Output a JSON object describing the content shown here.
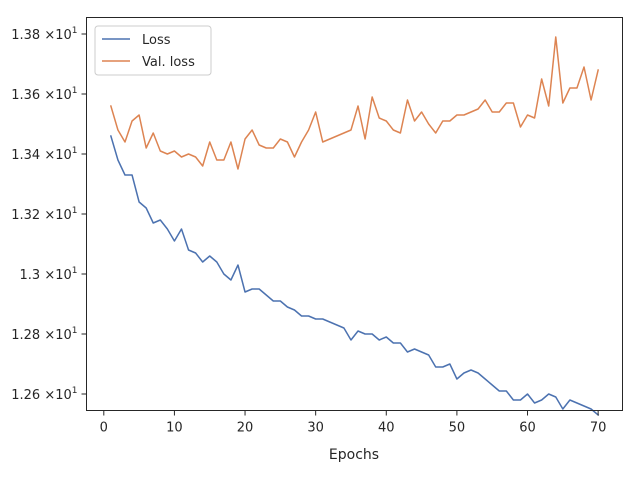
{
  "chart_data": {
    "type": "line",
    "title": "",
    "xlabel": "Epochs",
    "ylabel": "",
    "xlim": [
      -2.45,
      73.45
    ],
    "ylim": [
      12.545,
      13.855
    ],
    "x_ticks": [
      0,
      10,
      20,
      30,
      40,
      50,
      60,
      70
    ],
    "y_ticks": [
      {
        "value": 12.6,
        "mantissa": "1.26",
        "exp": "1"
      },
      {
        "value": 12.8,
        "mantissa": "1.28",
        "exp": "1"
      },
      {
        "value": 13.0,
        "mantissa": "1.3",
        "exp": "1"
      },
      {
        "value": 13.2,
        "mantissa": "1.32",
        "exp": "1"
      },
      {
        "value": 13.4,
        "mantissa": "1.34",
        "exp": "1"
      },
      {
        "value": 13.6,
        "mantissa": "1.36",
        "exp": "1"
      },
      {
        "value": 13.8,
        "mantissa": "1.38",
        "exp": "1"
      }
    ],
    "y_tick_times": "×10",
    "grid": false,
    "legend_position": "top-left",
    "series": [
      {
        "name": "Loss",
        "color": "#4c72b0",
        "x": [
          1,
          2,
          3,
          4,
          5,
          6,
          7,
          8,
          9,
          10,
          11,
          12,
          13,
          14,
          15,
          16,
          17,
          18,
          19,
          20,
          21,
          22,
          23,
          24,
          25,
          26,
          27,
          28,
          29,
          30,
          31,
          32,
          33,
          34,
          35,
          36,
          37,
          38,
          39,
          40,
          41,
          42,
          43,
          44,
          45,
          46,
          47,
          48,
          49,
          50,
          51,
          52,
          53,
          54,
          55,
          56,
          57,
          58,
          59,
          60,
          61,
          62,
          63,
          64,
          65,
          66,
          67,
          68,
          69,
          70
        ],
        "values": [
          13.46,
          13.38,
          13.33,
          13.33,
          13.24,
          13.22,
          13.17,
          13.18,
          13.15,
          13.11,
          13.15,
          13.08,
          13.07,
          13.04,
          13.06,
          13.04,
          13.0,
          12.98,
          13.03,
          12.94,
          12.95,
          12.95,
          12.93,
          12.91,
          12.91,
          12.89,
          12.88,
          12.86,
          12.86,
          12.85,
          12.85,
          12.84,
          12.83,
          12.82,
          12.78,
          12.81,
          12.8,
          12.8,
          12.78,
          12.79,
          12.77,
          12.77,
          12.74,
          12.75,
          12.74,
          12.73,
          12.69,
          12.69,
          12.7,
          12.65,
          12.67,
          12.68,
          12.67,
          12.65,
          12.63,
          12.61,
          12.61,
          12.58,
          12.58,
          12.6,
          12.57,
          12.58,
          12.6,
          12.59,
          12.55,
          12.58,
          12.57,
          12.56,
          12.55,
          12.53
        ]
      },
      {
        "name": "Val. loss",
        "color": "#dd8452",
        "x": [
          1,
          2,
          3,
          4,
          5,
          6,
          7,
          8,
          9,
          10,
          11,
          12,
          13,
          14,
          15,
          16,
          17,
          18,
          19,
          20,
          21,
          22,
          23,
          24,
          25,
          26,
          27,
          28,
          29,
          30,
          31,
          32,
          33,
          34,
          35,
          36,
          37,
          38,
          39,
          40,
          41,
          42,
          43,
          44,
          45,
          46,
          47,
          48,
          49,
          50,
          51,
          52,
          53,
          54,
          55,
          56,
          57,
          58,
          59,
          60,
          61,
          62,
          63,
          64,
          65,
          66,
          67,
          68,
          69,
          70
        ],
        "values": [
          13.56,
          13.48,
          13.44,
          13.51,
          13.53,
          13.42,
          13.47,
          13.41,
          13.4,
          13.41,
          13.39,
          13.4,
          13.39,
          13.36,
          13.44,
          13.38,
          13.38,
          13.44,
          13.35,
          13.45,
          13.48,
          13.43,
          13.42,
          13.42,
          13.45,
          13.44,
          13.39,
          13.44,
          13.48,
          13.54,
          13.44,
          13.45,
          13.46,
          13.47,
          13.48,
          13.56,
          13.45,
          13.59,
          13.52,
          13.51,
          13.48,
          13.47,
          13.58,
          13.51,
          13.54,
          13.5,
          13.47,
          13.51,
          13.51,
          13.53,
          13.53,
          13.54,
          13.55,
          13.58,
          13.54,
          13.54,
          13.57,
          13.57,
          13.49,
          13.53,
          13.52,
          13.65,
          13.56,
          13.79,
          13.57,
          13.62,
          13.62,
          13.69,
          13.58,
          13.68
        ]
      }
    ]
  }
}
